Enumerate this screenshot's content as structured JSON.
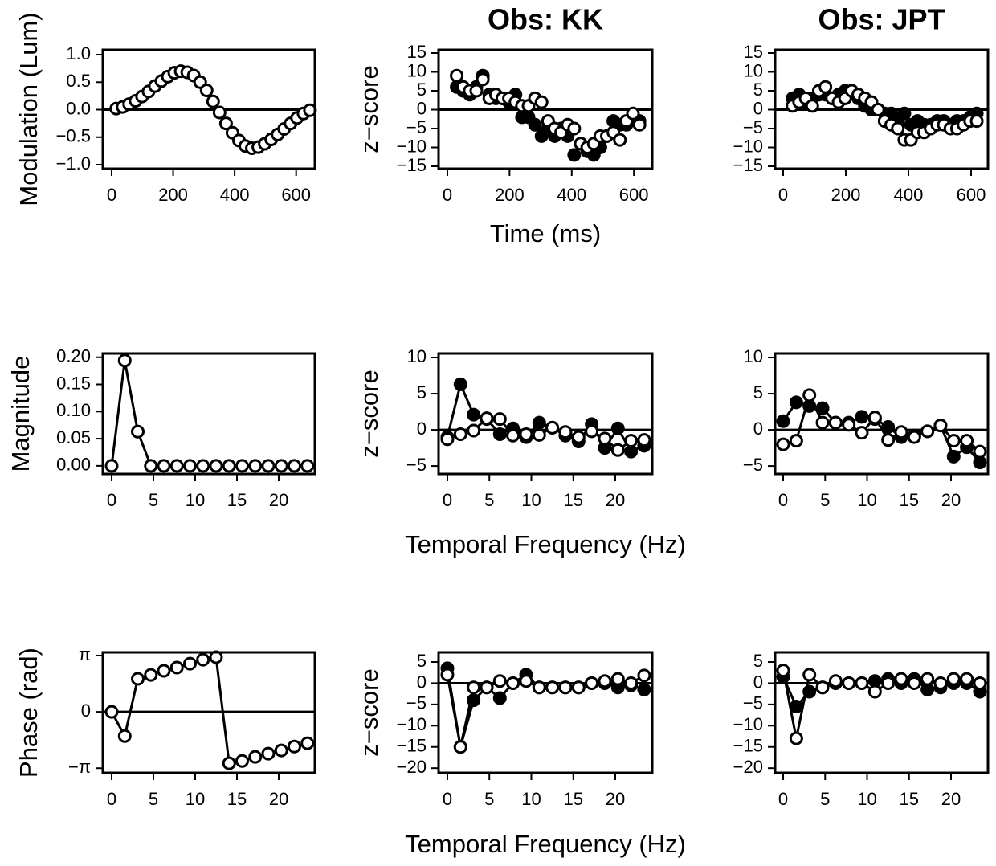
{
  "chart_data": [
    {
      "type": "scatter",
      "ylabel": "Modulation (Lum)",
      "lines": false,
      "hline": 0,
      "x": [
        15,
        36,
        57,
        78,
        99,
        120,
        141,
        162,
        183,
        204,
        225,
        246,
        267,
        288,
        309,
        330,
        351,
        372,
        393,
        414,
        435,
        456,
        477,
        498,
        519,
        540,
        561,
        582,
        603,
        624,
        645
      ],
      "series": [
        {
          "color": "#ffffff",
          "values": [
            0.02,
            0.05,
            0.1,
            0.16,
            0.24,
            0.33,
            0.43,
            0.52,
            0.6,
            0.67,
            0.7,
            0.68,
            0.62,
            0.5,
            0.35,
            0.15,
            -0.05,
            -0.25,
            -0.42,
            -0.56,
            -0.66,
            -0.7,
            -0.68,
            -0.62,
            -0.54,
            -0.45,
            -0.35,
            -0.25,
            -0.15,
            -0.07,
            -0.01
          ]
        }
      ],
      "xlim": [
        -28.7,
        660.9
      ],
      "ylim": [
        -1.073,
        1.088
      ],
      "xticks": [
        0,
        200,
        400,
        600
      ],
      "yticks": [
        {
          "value": -1.0,
          "label": "−1.0"
        },
        {
          "value": -0.5,
          "label": "−0.5"
        },
        {
          "value": 0.0,
          "label": "0.0"
        },
        {
          "value": 0.5,
          "label": "0.5"
        },
        {
          "value": 1.0,
          "label": "1.0"
        }
      ]
    },
    {
      "type": "scatter",
      "title": "Obs: KK",
      "ylabel": "z−score",
      "xlabel": "Time (ms)",
      "lines": false,
      "hline": 0,
      "x": [
        30,
        51,
        72,
        93,
        114,
        135,
        156,
        177,
        198,
        219,
        240,
        261,
        282,
        303,
        324,
        345,
        366,
        387,
        408,
        429,
        450,
        471,
        492,
        513,
        534,
        555,
        576,
        597,
        618
      ],
      "series": [
        {
          "color": "#000000",
          "values": [
            6,
            5,
            4,
            6,
            9,
            4,
            3,
            3,
            2,
            4,
            -2,
            -2,
            -4,
            -7,
            -5,
            -7,
            -5,
            -7,
            -12,
            -9,
            -11,
            -12,
            -10,
            -7,
            -3,
            -4,
            -4,
            -2,
            -3
          ]
        },
        {
          "color": "#ffffff",
          "values": [
            9,
            6,
            5,
            5,
            8,
            3,
            4,
            3,
            3,
            2,
            1,
            1,
            3,
            2,
            -3,
            -5,
            -6,
            -4,
            -5,
            -9,
            -10,
            -9,
            -7,
            -7,
            -6,
            -8,
            -3,
            -1,
            -4
          ]
        }
      ],
      "xlim": [
        -28.4,
        659
      ],
      "ylim": [
        -15.64,
        15.85
      ],
      "xticks": [
        0,
        200,
        400,
        600
      ],
      "yticks": [
        {
          "value": -15,
          "label": "−15"
        },
        {
          "value": -10,
          "label": "−10"
        },
        {
          "value": -5,
          "label": "−5"
        },
        0,
        5,
        10,
        15
      ]
    },
    {
      "type": "scatter",
      "title": "Obs: JPT",
      "lines": false,
      "hline": 0,
      "x": [
        30,
        51,
        72,
        93,
        114,
        135,
        156,
        177,
        198,
        219,
        240,
        261,
        282,
        303,
        324,
        345,
        366,
        387,
        408,
        429,
        450,
        471,
        492,
        513,
        534,
        555,
        576,
        597,
        618
      ],
      "series": [
        {
          "color": "#000000",
          "values": [
            3,
            4,
            2,
            3,
            4,
            4,
            3,
            4,
            5,
            5,
            3,
            1,
            0,
            0,
            -1,
            -1,
            -3,
            -1,
            -4,
            -3,
            -4,
            -4,
            -3,
            -3,
            -4,
            -3,
            -3,
            -2,
            -1
          ]
        },
        {
          "color": "#ffffff",
          "values": [
            1,
            2,
            3,
            1,
            5,
            6,
            3,
            2,
            3,
            5,
            4,
            3,
            2,
            0,
            -3,
            -4,
            -5,
            -8,
            -8,
            -6,
            -6,
            -5,
            -4,
            -4,
            -5,
            -5,
            -4,
            -3,
            -3
          ]
        }
      ],
      "xlim": [
        -25.6,
        653.8
      ],
      "ylim": [
        -15.64,
        15.85
      ],
      "xticks": [
        0,
        200,
        400,
        600
      ],
      "yticks": [
        {
          "value": -15,
          "label": "−15"
        },
        {
          "value": -10,
          "label": "−10"
        },
        {
          "value": -5,
          "label": "−5"
        },
        0,
        5,
        10,
        15
      ]
    },
    {
      "type": "scatter",
      "ylabel": "Magnitude",
      "lines": true,
      "x": [
        0,
        1.5625,
        3.125,
        4.6875,
        6.25,
        7.8125,
        9.375,
        10.9375,
        12.5,
        14.0625,
        15.625,
        17.1875,
        18.75,
        20.3125,
        21.875,
        23.4375
      ],
      "series": [
        {
          "color": "#ffffff",
          "values": [
            0,
            0.194,
            0.063,
            0,
            0,
            0,
            0,
            0,
            0,
            0,
            0,
            0,
            0,
            0,
            0,
            0
          ]
        }
      ],
      "xlim": [
        -1.06,
        24.33
      ],
      "ylim": [
        -0.015,
        0.207
      ],
      "xticks": [
        0,
        5,
        10,
        15,
        20
      ],
      "yticks": [
        {
          "value": 0,
          "label": "0.00"
        },
        {
          "value": 0.05,
          "label": "0.05"
        },
        {
          "value": 0.1,
          "label": "0.10"
        },
        {
          "value": 0.15,
          "label": "0.15"
        },
        {
          "value": 0.2,
          "label": "0.20"
        }
      ]
    },
    {
      "type": "scatter",
      "ylabel": "z−score",
      "xlabel": "Temporal Frequency (Hz)",
      "lines": true,
      "hline": 0,
      "x": [
        0,
        1.5625,
        3.125,
        4.6875,
        6.25,
        7.8125,
        9.375,
        10.9375,
        12.5,
        14.0625,
        15.625,
        17.1875,
        18.75,
        20.3125,
        21.875,
        23.4375
      ],
      "series": [
        {
          "color": "#000000",
          "values": [
            -1,
            6.3,
            2.1,
            1.5,
            -0.6,
            0.2,
            -1,
            1,
            0.3,
            -0.8,
            -1.6,
            0.8,
            -2.5,
            0.2,
            -3,
            -2.2
          ]
        },
        {
          "color": "#ffffff",
          "values": [
            -1.3,
            -0.6,
            -0.1,
            1.6,
            1.5,
            -0.8,
            -0.6,
            -0.7,
            0.3,
            -0.3,
            -1,
            -0.2,
            -1.2,
            -2.8,
            -1.5,
            -1.4
          ]
        }
      ],
      "xlim": [
        -1.05,
        24.4
      ],
      "ylim": [
        -6.1,
        10.56
      ],
      "xticks": [
        0,
        5,
        10,
        15,
        20
      ],
      "yticks": [
        {
          "value": -5,
          "label": "−5"
        },
        0,
        5,
        10
      ]
    },
    {
      "type": "scatter",
      "lines": true,
      "hline": 0,
      "x": [
        0,
        1.5625,
        3.125,
        4.6875,
        6.25,
        7.8125,
        9.375,
        10.9375,
        12.5,
        14.0625,
        15.625,
        17.1875,
        18.75,
        20.3125,
        21.875,
        23.4375
      ],
      "series": [
        {
          "color": "#000000",
          "values": [
            1.2,
            3.8,
            3.3,
            3,
            1,
            1,
            1.8,
            1.5,
            0.4,
            -1,
            -0.8,
            -0.2,
            0.6,
            -3.7,
            -2.4,
            -4.5
          ]
        },
        {
          "color": "#ffffff",
          "values": [
            -2,
            -1.5,
            4.8,
            1,
            1,
            0.7,
            -0.4,
            1.7,
            -1.4,
            -0.3,
            -1,
            -0.2,
            0.6,
            -1.5,
            -1.5,
            -3
          ]
        }
      ],
      "xlim": [
        -0.96,
        24.4
      ],
      "ylim": [
        -6.1,
        10.56
      ],
      "xticks": [
        0,
        5,
        10,
        15,
        20
      ],
      "yticks": [
        {
          "value": -5,
          "label": "−5"
        },
        0,
        5,
        10
      ]
    },
    {
      "type": "scatter",
      "ylabel": "Phase (rad)",
      "lines": true,
      "hline": 0,
      "x": [
        0,
        1.5625,
        3.125,
        4.6875,
        6.25,
        7.8125,
        9.375,
        10.9375,
        12.5,
        14.0625,
        15.625,
        17.1875,
        18.75,
        20.3125,
        21.875,
        23.4375
      ],
      "series": [
        {
          "color": "#ffffff",
          "values": [
            0,
            -1.35,
            1.84,
            2.06,
            2.29,
            2.47,
            2.69,
            2.91,
            3.05,
            -2.87,
            -2.74,
            -2.51,
            -2.33,
            -2.15,
            -1.93,
            -1.75
          ]
        }
      ],
      "xlim": [
        -1.06,
        24.33
      ],
      "ylim": [
        -3.4,
        3.32
      ],
      "xticks": [
        0,
        5,
        10,
        15,
        20
      ],
      "yticks": [
        {
          "value": -3.1416,
          "label": "−π"
        },
        0,
        {
          "value": 3.1416,
          "label": "π"
        }
      ]
    },
    {
      "type": "scatter",
      "ylabel": "z−score",
      "xlabel": "Temporal Frequency (Hz)",
      "lines": true,
      "hline": 0,
      "x": [
        0,
        1.5625,
        3.125,
        4.6875,
        6.25,
        7.8125,
        9.375,
        10.9375,
        12.5,
        14.0625,
        15.625,
        17.1875,
        18.75,
        20.3125,
        21.875,
        23.4375
      ],
      "series": [
        {
          "color": "#000000",
          "values": [
            3.5,
            -15,
            -4,
            -1,
            -3.5,
            0,
            2,
            -1,
            -1,
            -1,
            -1,
            0,
            0,
            -1,
            -0.5,
            -1.5
          ]
        },
        {
          "color": "#ffffff",
          "values": [
            2,
            -15,
            -1,
            -1,
            0.5,
            0,
            0.5,
            -1,
            -1,
            -1,
            -1,
            0,
            0.5,
            1,
            0,
            1.8
          ]
        }
      ],
      "xlim": [
        -1.05,
        24.4
      ],
      "ylim": [
        -21.1,
        7.27
      ],
      "xticks": [
        0,
        5,
        10,
        15,
        20
      ],
      "yticks": [
        {
          "value": -20,
          "label": "−20"
        },
        {
          "value": -15,
          "label": "−15"
        },
        {
          "value": -10,
          "label": "−10"
        },
        {
          "value": -5,
          "label": "−5"
        },
        0,
        5
      ]
    },
    {
      "type": "scatter",
      "lines": true,
      "hline": 0,
      "x": [
        0,
        1.5625,
        3.125,
        4.6875,
        6.25,
        7.8125,
        9.375,
        10.9375,
        12.5,
        14.0625,
        15.625,
        17.1875,
        18.75,
        20.3125,
        21.875,
        23.4375
      ],
      "series": [
        {
          "color": "#000000",
          "values": [
            1.5,
            -5.5,
            -2,
            -1,
            0,
            0,
            0,
            0.5,
            1,
            0,
            1,
            -1.5,
            -1,
            0,
            0,
            -2
          ]
        },
        {
          "color": "#ffffff",
          "values": [
            3,
            -13,
            2,
            -1,
            0.5,
            0,
            0,
            -2,
            0,
            1,
            0,
            1,
            0,
            1,
            1,
            0
          ]
        }
      ],
      "xlim": [
        -0.96,
        24.4
      ],
      "ylim": [
        -21.1,
        7.27
      ],
      "xticks": [
        0,
        5,
        10,
        15,
        20
      ],
      "yticks": [
        {
          "value": -20,
          "label": "−20"
        },
        {
          "value": -15,
          "label": "−15"
        },
        {
          "value": -10,
          "label": "−10"
        },
        {
          "value": -5,
          "label": "−5"
        },
        0,
        5
      ]
    }
  ]
}
